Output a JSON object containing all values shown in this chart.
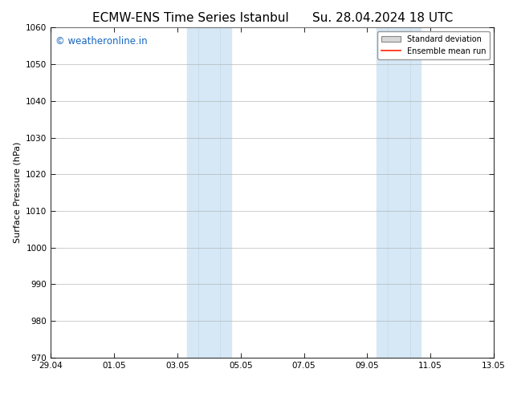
{
  "title_left": "ECMW-ENS Time Series Istanbul",
  "title_right": "Su. 28.04.2024 18 UTC",
  "ylabel": "Surface Pressure (hPa)",
  "ylim": [
    970,
    1060
  ],
  "yticks": [
    970,
    980,
    990,
    1000,
    1010,
    1020,
    1030,
    1040,
    1050,
    1060
  ],
  "xlim_start": 0,
  "xlim_end": 14,
  "xtick_labels": [
    "29.04",
    "01.05",
    "03.05",
    "05.05",
    "07.05",
    "09.05",
    "11.05",
    "13.05"
  ],
  "xtick_positions": [
    0,
    2,
    4,
    6,
    8,
    10,
    12,
    14
  ],
  "shaded_bands": [
    {
      "x_start": 4.3,
      "x_end": 5.0,
      "x_mid": 4.65
    },
    {
      "x_start": 5.0,
      "x_end": 5.7,
      "x_mid": 5.35
    },
    {
      "x_start": 10.3,
      "x_end": 11.0,
      "x_mid": 10.65
    },
    {
      "x_start": 11.0,
      "x_end": 11.7,
      "x_mid": 11.35
    }
  ],
  "shade_color": "#d6e8f5",
  "watermark_text": "© weatheronline.in",
  "watermark_color": "#1565c0",
  "legend_std_label": "Standard deviation",
  "legend_ens_label": "Ensemble mean run",
  "legend_std_facecolor": "#d8d8d8",
  "legend_std_edgecolor": "#888888",
  "legend_ens_color": "#ff2200",
  "background_color": "#ffffff",
  "grid_color": "#aaaaaa",
  "title_fontsize": 11,
  "axis_label_fontsize": 8,
  "tick_fontsize": 7.5,
  "watermark_fontsize": 8.5,
  "legend_fontsize": 7
}
